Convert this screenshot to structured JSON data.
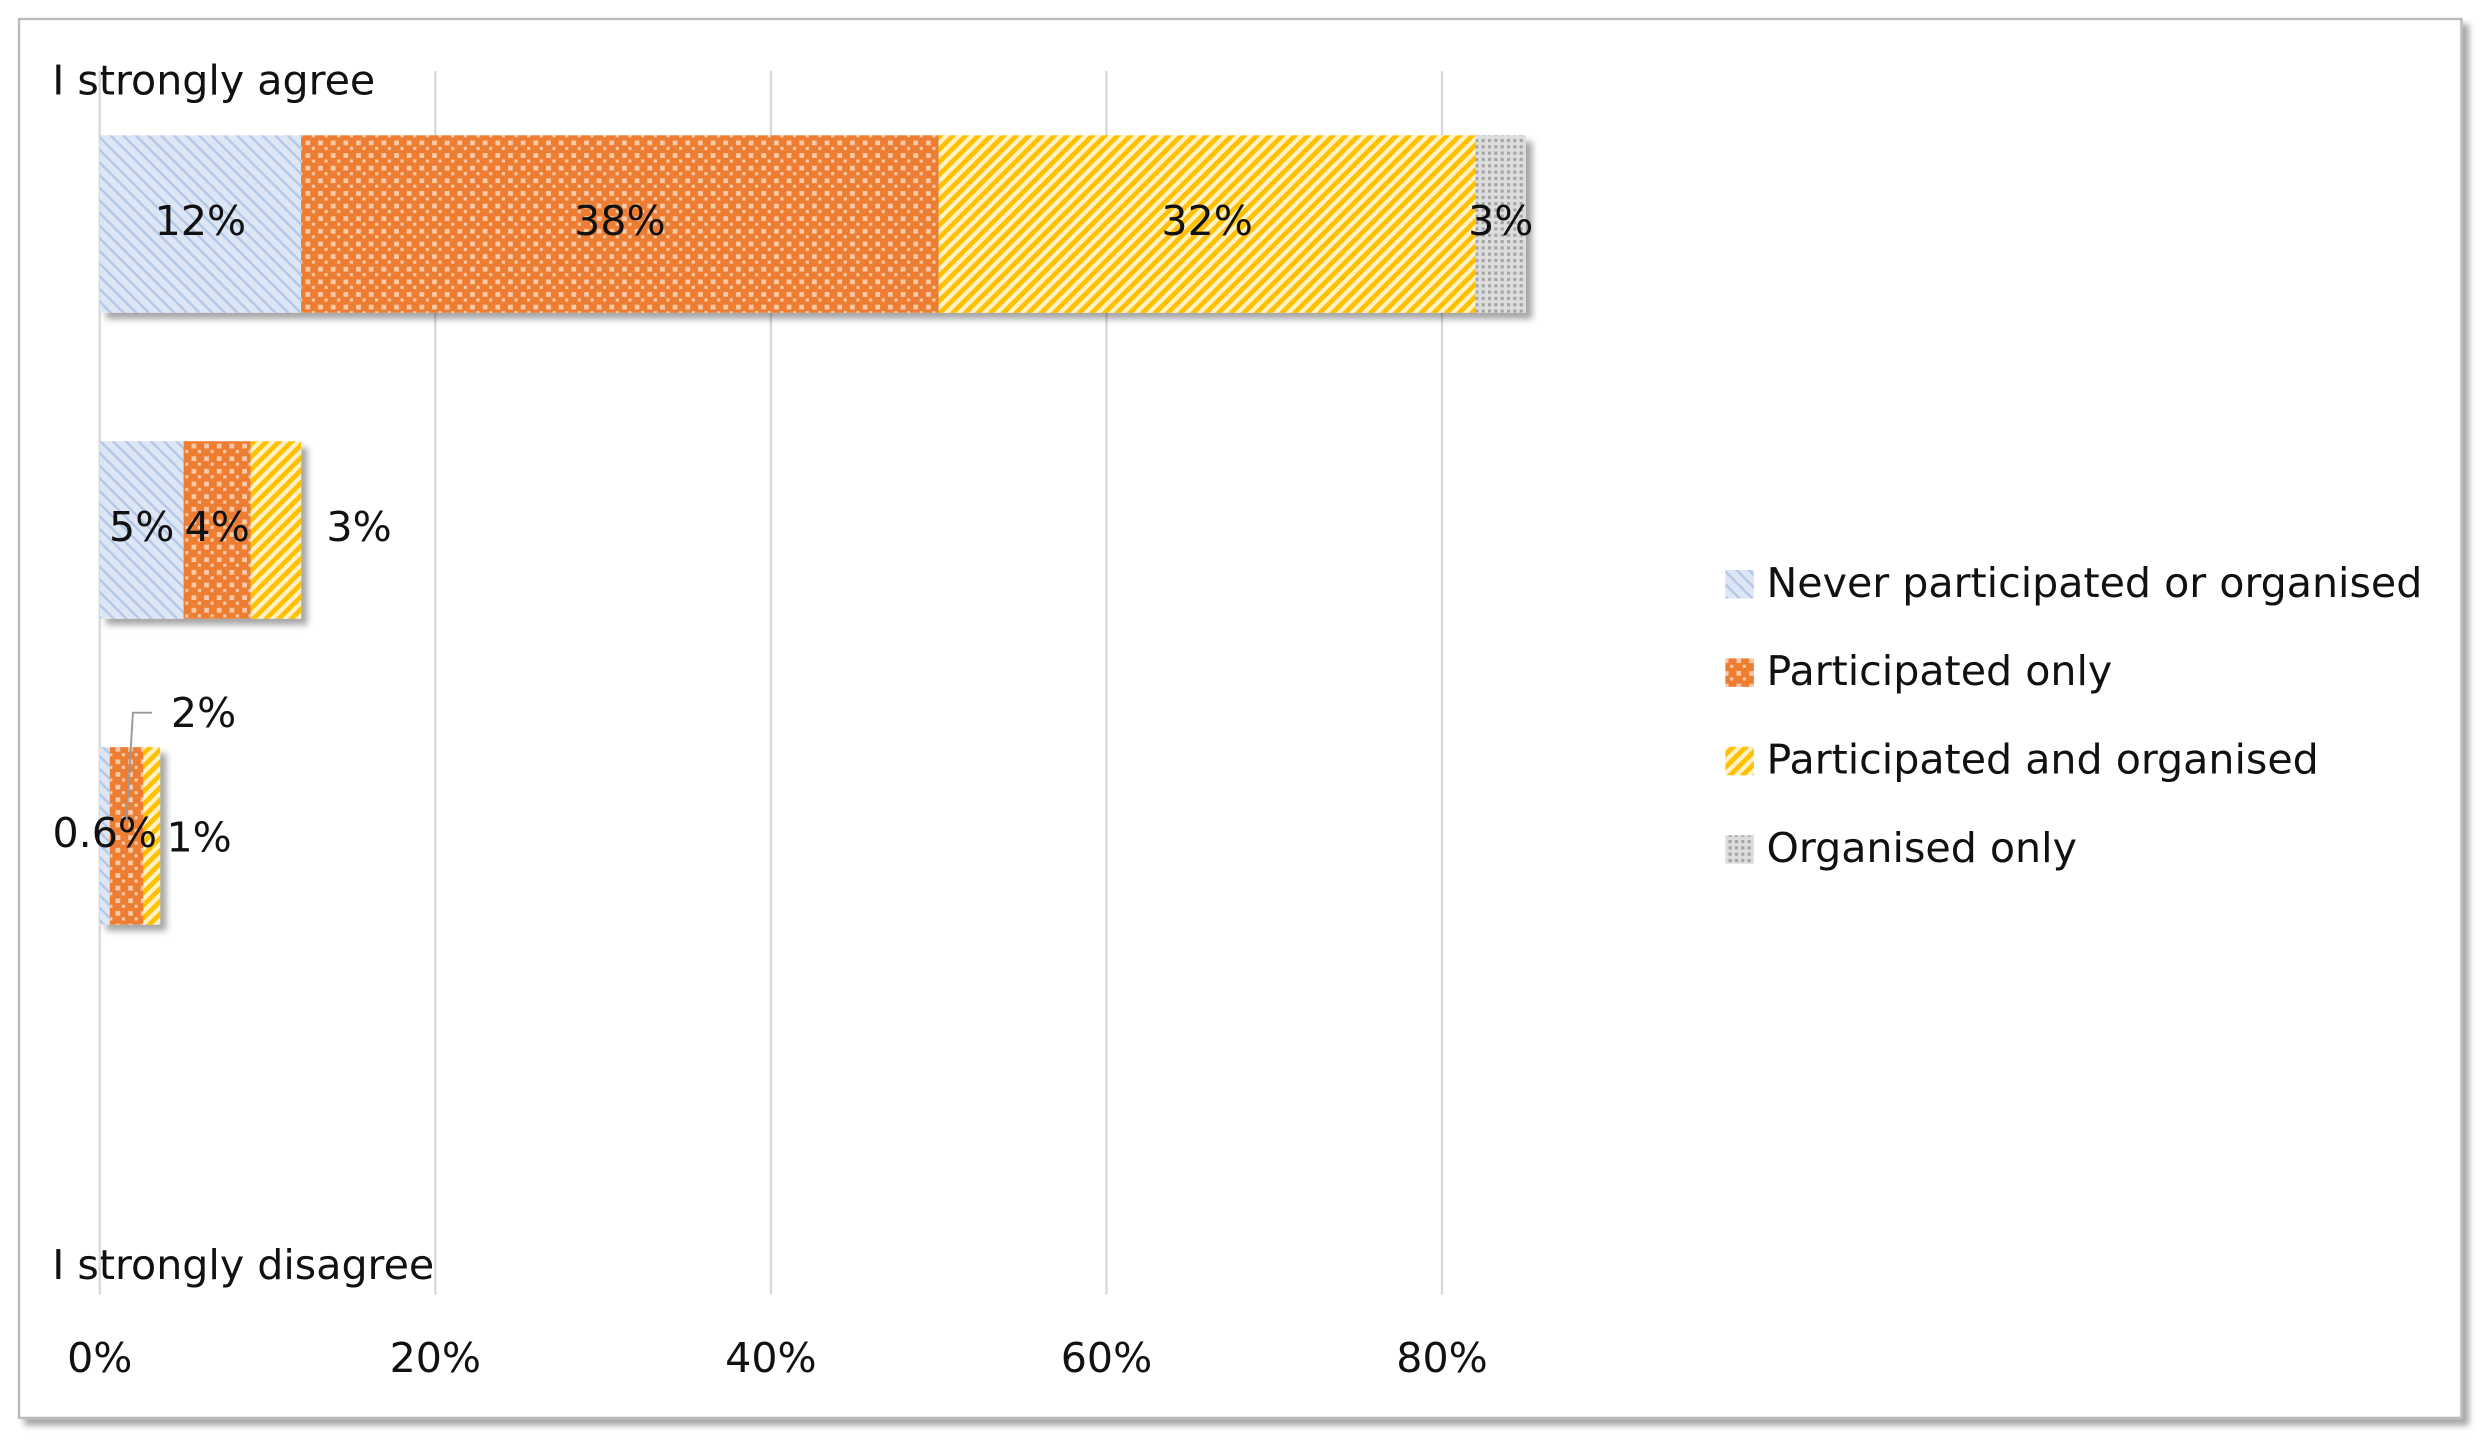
{
  "chart_data": {
    "type": "stacked-bar-horizontal",
    "annotations": [
      "I strongly agree",
      "I strongly disagree"
    ],
    "categories": [
      null,
      null,
      null,
      null
    ],
    "series": [
      {
        "name": "Never participated or organised",
        "color": "#b4c7e7",
        "values": [
          12,
          5,
          0.6,
          null
        ],
        "value_labels": [
          "12%",
          "5%",
          "0.6%",
          null
        ]
      },
      {
        "name": "Participated only",
        "color": "#ed7d31",
        "values": [
          38,
          4,
          2,
          null
        ],
        "value_labels": [
          "38%",
          "4%",
          "2%",
          null
        ]
      },
      {
        "name": "Participated and organised",
        "color": "#ffc000",
        "values": [
          32,
          3,
          1,
          null
        ],
        "value_labels": [
          "32%",
          "3%",
          "1%",
          null
        ]
      },
      {
        "name": "Organised only",
        "color": "#a5a5a5",
        "values": [
          3,
          null,
          null,
          null
        ],
        "value_labels": [
          "3%",
          null,
          null,
          null
        ]
      }
    ],
    "xlim": [
      0,
      90
    ],
    "xticks": [
      {
        "value": 0,
        "label": "0%"
      },
      {
        "value": 20,
        "label": "20%"
      },
      {
        "value": 40,
        "label": "40%"
      },
      {
        "value": 60,
        "label": "60%"
      },
      {
        "value": 80,
        "label": "80%"
      }
    ],
    "grid": true,
    "legend": "right"
  }
}
